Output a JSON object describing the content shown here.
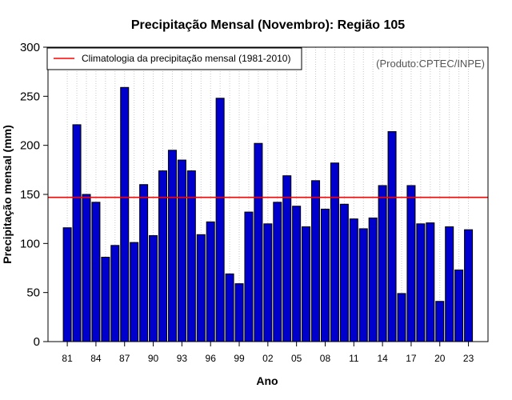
{
  "chart_data": {
    "type": "bar",
    "title": "Precipitação Mensal (Novembro): Região 105",
    "xlabel": "Ano",
    "ylabel": "Precipitação mensal (mm)",
    "ylim": [
      0,
      300
    ],
    "yticks": [
      0,
      50,
      100,
      150,
      200,
      250,
      300
    ],
    "x_tick_labels": [
      "81",
      "84",
      "87",
      "90",
      "93",
      "96",
      "99",
      "02",
      "05",
      "08",
      "11",
      "14",
      "17",
      "20",
      "23"
    ],
    "categories": [
      "1981",
      "1982",
      "1983",
      "1984",
      "1985",
      "1986",
      "1987",
      "1988",
      "1989",
      "1990",
      "1991",
      "1992",
      "1993",
      "1994",
      "1995",
      "1996",
      "1997",
      "1998",
      "1999",
      "2000",
      "2001",
      "2002",
      "2003",
      "2004",
      "2005",
      "2006",
      "2007",
      "2008",
      "2009",
      "2010",
      "2011",
      "2012",
      "2013",
      "2014",
      "2015",
      "2016",
      "2017",
      "2018",
      "2019",
      "2020",
      "2021",
      "2022",
      "2023"
    ],
    "values": [
      116,
      221,
      150,
      142,
      86,
      98,
      259,
      101,
      160,
      108,
      174,
      195,
      185,
      174,
      109,
      122,
      248,
      69,
      59,
      132,
      202,
      120,
      142,
      169,
      138,
      117,
      164,
      135,
      182,
      140,
      125,
      115,
      126,
      159,
      214,
      49,
      159,
      120,
      121,
      41,
      117,
      73,
      114
    ],
    "climatology": {
      "value": 147,
      "label": "Climatologia da precipitação mensal (1981-2010)",
      "color": "#ff0000"
    },
    "bar_color": "#0000cc",
    "grid": "vertical dotted",
    "legend_position": "top-left",
    "credit": "(Produto:CPTEC/INPE)"
  }
}
